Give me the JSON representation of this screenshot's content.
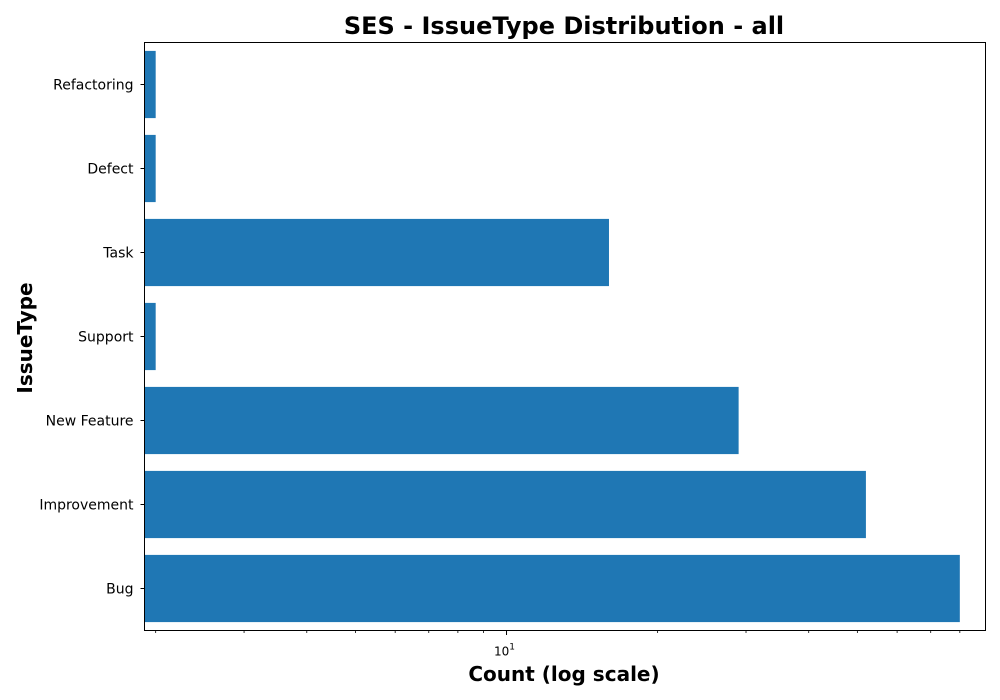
{
  "chart_data": {
    "type": "bar",
    "orientation": "horizontal",
    "title": "SES - IssueType Distribution - all",
    "xlabel": "Count (log scale)",
    "ylabel": "IssueType",
    "x_scale": "log",
    "xlim": [
      1.9,
      90
    ],
    "x_major_ticks": [
      10
    ],
    "x_major_tick_labels": [
      "10",
      "1"
    ],
    "x_minor_ticks": [
      2,
      3,
      4,
      5,
      6,
      7,
      8,
      9,
      20,
      30,
      40,
      50,
      60,
      70,
      80
    ],
    "categories": [
      "Bug",
      "Improvement",
      "New Feature",
      "Support",
      "Task",
      "Defect",
      "Refactoring"
    ],
    "values": [
      80,
      52,
      29,
      2,
      16,
      2,
      2
    ],
    "colors": {
      "bar": "#1f77b4"
    },
    "grid": false,
    "legend": "none"
  }
}
